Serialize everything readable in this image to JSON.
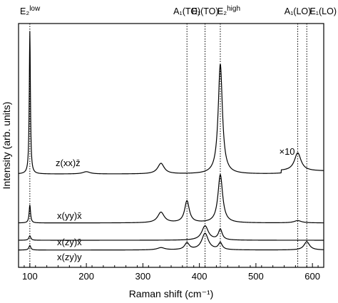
{
  "chart_data": {
    "type": "line",
    "xlabel": "Raman shift (cm⁻¹)",
    "ylabel": "Intensity (arb. units)",
    "xlim": [
      80,
      620
    ],
    "x_ticks": [
      100,
      200,
      300,
      400,
      500,
      600
    ],
    "y_ticks": [],
    "grid": false,
    "legend": "none",
    "peak_markers": [
      {
        "label": "E₂",
        "sup": "low",
        "x": 100
      },
      {
        "label": "A₁(TO)",
        "sup": "",
        "x": 378
      },
      {
        "label": "E₁(TO)",
        "sup": "",
        "x": 410
      },
      {
        "label": "E₂",
        "sup": "high",
        "x": 437
      },
      {
        "label": "A₁(LO)",
        "sup": "",
        "x": 574
      },
      {
        "label": "E₁(LO)",
        "sup": "",
        "x": 590
      }
    ],
    "annotations": [
      {
        "text": "×10",
        "x": 550
      }
    ],
    "series": [
      {
        "name": "z(xx)z̄",
        "baseline": 0.0,
        "scale_break_x": 545,
        "scale_break_step": 0.02,
        "peaks": [
          {
            "x": 100,
            "height": 0.95,
            "width": 1.2
          },
          {
            "x": 200,
            "height": 0.015,
            "width": 8
          },
          {
            "x": 332,
            "height": 0.07,
            "width": 7
          },
          {
            "x": 437,
            "height": 0.73,
            "width": 4.5
          },
          {
            "x": 574,
            "height": 0.12,
            "width": 7
          }
        ]
      },
      {
        "name": "x(yy)x̄",
        "baseline": -0.325,
        "peaks": [
          {
            "x": 100,
            "height": 0.12,
            "width": 1.5
          },
          {
            "x": 332,
            "height": 0.07,
            "width": 7
          },
          {
            "x": 378,
            "height": 0.145,
            "width": 5
          },
          {
            "x": 437,
            "height": 0.32,
            "width": 5
          },
          {
            "x": 574,
            "height": 0.015,
            "width": 8
          }
        ]
      },
      {
        "name": "x(zy)x̄",
        "baseline": -0.44,
        "peaks": [
          {
            "x": 100,
            "height": 0.03,
            "width": 2
          },
          {
            "x": 410,
            "height": 0.095,
            "width": 7
          },
          {
            "x": 437,
            "height": 0.07,
            "width": 4
          }
        ]
      },
      {
        "name": "x(zy)y",
        "baseline": -0.505,
        "peaks": [
          {
            "x": 100,
            "height": 0.03,
            "width": 2
          },
          {
            "x": 332,
            "height": 0.015,
            "width": 8
          },
          {
            "x": 378,
            "height": 0.045,
            "width": 5
          },
          {
            "x": 410,
            "height": 0.11,
            "width": 7
          },
          {
            "x": 437,
            "height": 0.045,
            "width": 4
          },
          {
            "x": 590,
            "height": 0.055,
            "width": 6
          }
        ]
      }
    ]
  }
}
